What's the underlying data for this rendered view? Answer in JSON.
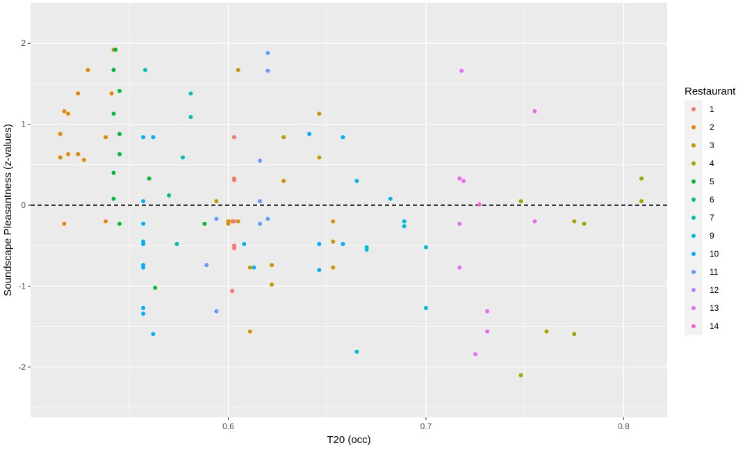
{
  "chart_data": {
    "type": "scatter",
    "xlabel": "T20 (occ)",
    "ylabel": "Soundscape Pleasantness (z-values)",
    "xlim": [
      0.5,
      0.822
    ],
    "ylim": [
      -2.62,
      2.5
    ],
    "x_ticks": [
      0.6,
      0.7,
      0.8
    ],
    "x_tick_labels": [
      "0.6",
      "0.7",
      "0.8"
    ],
    "y_ticks": [
      -2,
      -1,
      0,
      1,
      2
    ],
    "y_tick_labels": [
      "-2",
      "-1",
      "0",
      "1",
      "2"
    ],
    "grid": true,
    "reference_line": {
      "y": 0,
      "style": "dashed"
    },
    "legend": {
      "title": "Restaurant",
      "position": "right"
    },
    "series": [
      {
        "name": "1",
        "color": "#F8766D",
        "points": [
          [
            0.603,
            0.84
          ],
          [
            0.603,
            0.33
          ],
          [
            0.603,
            0.31
          ],
          [
            0.602,
            -0.2
          ],
          [
            0.603,
            -0.2
          ],
          [
            0.603,
            -0.5
          ],
          [
            0.603,
            -0.53
          ],
          [
            0.602,
            -1.06
          ]
        ]
      },
      {
        "name": "2",
        "color": "#E58700",
        "points": [
          [
            0.542,
            1.92
          ],
          [
            0.529,
            1.67
          ],
          [
            0.524,
            1.38
          ],
          [
            0.541,
            1.38
          ],
          [
            0.517,
            1.16
          ],
          [
            0.519,
            1.13
          ],
          [
            0.515,
            0.88
          ],
          [
            0.538,
            0.84
          ],
          [
            0.519,
            0.63
          ],
          [
            0.524,
            0.63
          ],
          [
            0.515,
            0.59
          ],
          [
            0.527,
            0.56
          ],
          [
            0.517,
            -0.23
          ],
          [
            0.538,
            -0.2
          ]
        ]
      },
      {
        "name": "3",
        "color": "#C99800",
        "points": [
          [
            0.605,
            1.67
          ],
          [
            0.646,
            1.13
          ],
          [
            0.628,
            0.84
          ],
          [
            0.646,
            0.59
          ],
          [
            0.628,
            0.3
          ],
          [
            0.594,
            0.05
          ],
          [
            0.6,
            -0.2
          ],
          [
            0.605,
            -0.2
          ],
          [
            0.653,
            -0.2
          ],
          [
            0.6,
            -0.23
          ],
          [
            0.653,
            -0.45
          ],
          [
            0.611,
            -0.77
          ],
          [
            0.622,
            -0.74
          ],
          [
            0.653,
            -0.77
          ],
          [
            0.622,
            -0.98
          ],
          [
            0.611,
            -1.56
          ]
        ]
      },
      {
        "name": "4",
        "color": "#A3A500",
        "points": [
          [
            0.809,
            0.33
          ],
          [
            0.809,
            0.05
          ],
          [
            0.748,
            0.05
          ],
          [
            0.775,
            -0.2
          ],
          [
            0.78,
            -0.23
          ],
          [
            0.761,
            -1.56
          ],
          [
            0.775,
            -1.59
          ],
          [
            0.748,
            -2.1
          ]
        ]
      },
      {
        "name": "5",
        "color": "#00BA38",
        "points": [
          [
            0.543,
            1.92
          ],
          [
            0.542,
            1.67
          ],
          [
            0.545,
            1.41
          ],
          [
            0.542,
            1.13
          ],
          [
            0.545,
            0.88
          ],
          [
            0.545,
            0.63
          ],
          [
            0.542,
            0.4
          ],
          [
            0.56,
            0.33
          ],
          [
            0.542,
            0.08
          ],
          [
            0.545,
            -0.23
          ],
          [
            0.588,
            -0.23
          ],
          [
            0.563,
            -1.02
          ]
        ]
      },
      {
        "name": "6",
        "color": "#00BF7D",
        "points": [
          [
            0.57,
            0.12
          ]
        ]
      },
      {
        "name": "7",
        "color": "#00C0AF",
        "points": [
          [
            0.558,
            1.67
          ],
          [
            0.581,
            1.38
          ],
          [
            0.581,
            1.09
          ],
          [
            0.577,
            0.59
          ],
          [
            0.574,
            -0.48
          ]
        ]
      },
      {
        "name": "9",
        "color": "#00BCD8",
        "points": [
          [
            0.665,
            0.3
          ],
          [
            0.682,
            0.08
          ],
          [
            0.689,
            -0.2
          ],
          [
            0.689,
            -0.26
          ],
          [
            0.67,
            -0.52
          ],
          [
            0.67,
            -0.55
          ],
          [
            0.7,
            -0.52
          ],
          [
            0.7,
            -1.27
          ],
          [
            0.665,
            -1.81
          ]
        ]
      },
      {
        "name": "10",
        "color": "#00B0F6",
        "points": [
          [
            0.557,
            0.84
          ],
          [
            0.562,
            0.84
          ],
          [
            0.641,
            0.88
          ],
          [
            0.658,
            0.84
          ],
          [
            0.557,
            0.05
          ],
          [
            0.557,
            -0.23
          ],
          [
            0.557,
            -0.45
          ],
          [
            0.557,
            -0.48
          ],
          [
            0.608,
            -0.48
          ],
          [
            0.646,
            -0.48
          ],
          [
            0.658,
            -0.48
          ],
          [
            0.557,
            -0.74
          ],
          [
            0.557,
            -0.77
          ],
          [
            0.613,
            -0.77
          ],
          [
            0.646,
            -0.8
          ],
          [
            0.557,
            -1.27
          ],
          [
            0.557,
            -1.34
          ],
          [
            0.562,
            -1.59
          ]
        ]
      },
      {
        "name": "11",
        "color": "#619CFF",
        "points": [
          [
            0.62,
            1.88
          ],
          [
            0.62,
            1.66
          ],
          [
            0.616,
            0.55
          ],
          [
            0.616,
            0.05
          ],
          [
            0.594,
            -0.17
          ],
          [
            0.616,
            -0.23
          ],
          [
            0.62,
            -0.17
          ],
          [
            0.589,
            -0.74
          ],
          [
            0.594,
            -1.31
          ]
        ]
      },
      {
        "name": "12",
        "color": "#B983FF",
        "points": []
      },
      {
        "name": "13",
        "color": "#E76BF3",
        "points": [
          [
            0.718,
            1.66
          ],
          [
            0.755,
            1.16
          ],
          [
            0.717,
            0.33
          ],
          [
            0.719,
            0.3
          ],
          [
            0.755,
            -0.2
          ],
          [
            0.717,
            -0.23
          ],
          [
            0.717,
            -0.77
          ],
          [
            0.731,
            -1.31
          ],
          [
            0.731,
            -1.56
          ],
          [
            0.725,
            -1.84
          ]
        ]
      },
      {
        "name": "14",
        "color": "#FD61D1",
        "points": [
          [
            0.727,
            0.01
          ]
        ]
      }
    ]
  }
}
